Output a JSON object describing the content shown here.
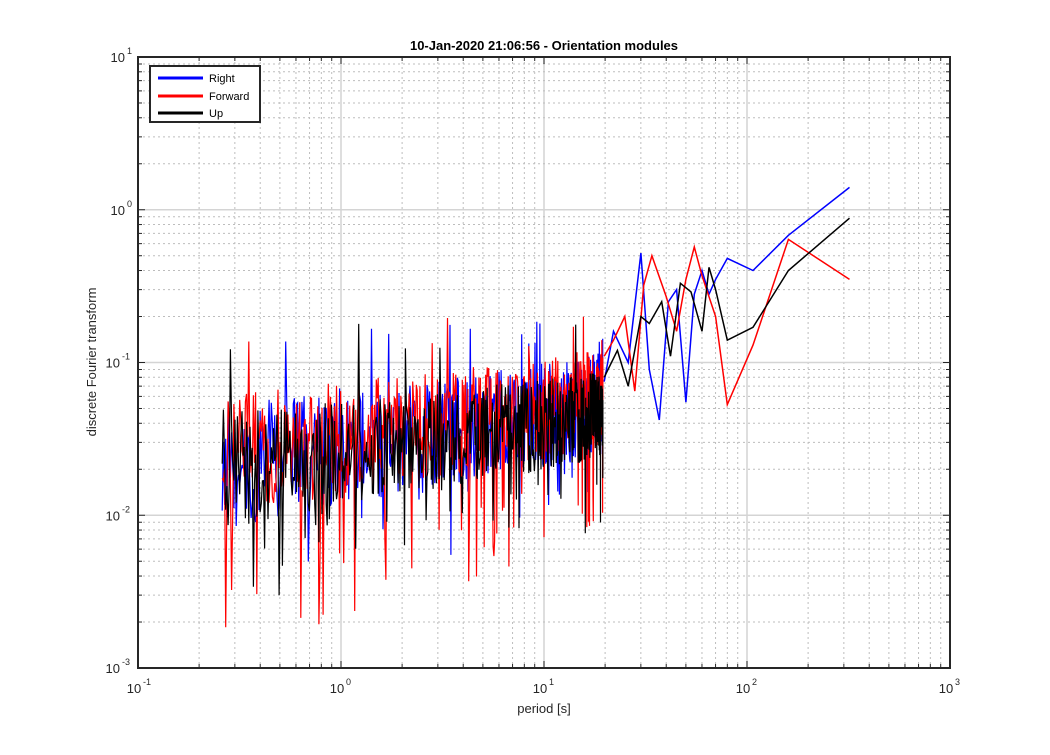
{
  "chart_data": {
    "type": "line",
    "title": "10-Jan-2020 21:06:56 - Orientation modules",
    "xlabel": "period [s]",
    "ylabel": "discrete Fourier transform",
    "xscale": "log",
    "yscale": "log",
    "xlim": [
      0.1,
      1000
    ],
    "ylim": [
      0.001,
      10
    ],
    "grid": "major and minor, dotted",
    "legend_position": "top-left",
    "x_tick_labels": [
      {
        "base": "10",
        "exp": "-1"
      },
      {
        "base": "10",
        "exp": "0"
      },
      {
        "base": "10",
        "exp": "1"
      },
      {
        "base": "10",
        "exp": "2"
      },
      {
        "base": "10",
        "exp": "3"
      }
    ],
    "y_tick_labels": [
      {
        "base": "10",
        "exp": "-3"
      },
      {
        "base": "10",
        "exp": "-2"
      },
      {
        "base": "10",
        "exp": "-1"
      },
      {
        "base": "10",
        "exp": "0"
      },
      {
        "base": "10",
        "exp": "1"
      }
    ],
    "series": [
      {
        "name": "Right",
        "color": "#0000ff",
        "x": [
          19.8,
          22,
          26,
          30,
          33,
          37,
          41,
          45,
          50,
          55,
          60,
          65,
          70,
          80,
          107,
          160,
          320
        ],
        "y": [
          0.075,
          0.16,
          0.1,
          0.52,
          0.09,
          0.042,
          0.25,
          0.3,
          0.055,
          0.28,
          0.4,
          0.28,
          0.35,
          0.48,
          0.4,
          0.68,
          1.4
        ],
        "band": {
          "x_start": 0.26,
          "x_end": 19.5,
          "top_start": 0.055,
          "top_end": 0.12,
          "bottom_start": 0.008,
          "bottom_end": 0.025,
          "spike_min": 0.002,
          "spike_max": 0.2
        }
      },
      {
        "name": "Forward",
        "color": "#ff0000",
        "x": [
          19.8,
          22,
          25,
          28,
          31,
          34,
          40,
          45,
          50,
          55,
          60,
          70,
          80,
          107,
          160,
          320
        ],
        "y": [
          0.11,
          0.14,
          0.2,
          0.065,
          0.32,
          0.5,
          0.27,
          0.16,
          0.35,
          0.57,
          0.37,
          0.2,
          0.053,
          0.13,
          0.64,
          0.35
        ],
        "band": {
          "x_start": 0.26,
          "x_end": 19.5,
          "top_start": 0.06,
          "top_end": 0.13,
          "bottom_start": 0.009,
          "bottom_end": 0.03,
          "spike_min": 0.0011,
          "spike_max": 0.2
        }
      },
      {
        "name": "Up",
        "color": "#000000",
        "x": [
          19.8,
          23,
          26,
          30,
          33,
          38,
          42,
          47,
          53,
          60,
          65,
          70,
          80,
          107,
          160,
          320
        ],
        "y": [
          0.08,
          0.12,
          0.07,
          0.2,
          0.18,
          0.25,
          0.11,
          0.33,
          0.29,
          0.16,
          0.42,
          0.3,
          0.14,
          0.17,
          0.4,
          0.88
        ],
        "band": {
          "x_start": 0.26,
          "x_end": 19.5,
          "top_start": 0.05,
          "top_end": 0.09,
          "bottom_start": 0.008,
          "bottom_end": 0.025,
          "spike_min": 0.0017,
          "spike_max": 0.2
        }
      }
    ]
  }
}
